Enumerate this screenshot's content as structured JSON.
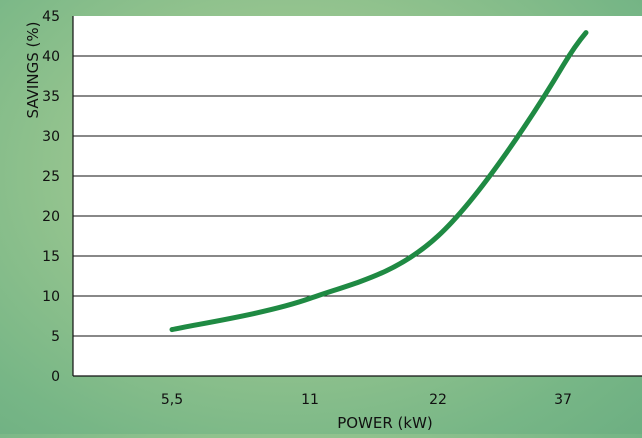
{
  "chart_data": {
    "type": "line",
    "title": "",
    "xlabel": "POWER (kW)",
    "ylabel": "SAVINGS (%)",
    "x_tick_labels": [
      "5,5",
      "11",
      "22",
      "37"
    ],
    "ylim": [
      0,
      45
    ],
    "y_ticks": [
      0,
      5,
      10,
      15,
      20,
      25,
      30,
      35,
      40,
      45
    ],
    "grid": true,
    "series": [
      {
        "color": "#1f8a43",
        "points": [
          {
            "x": "5,5",
            "y": 5.8
          },
          {
            "x": "11",
            "y": 9.7
          },
          {
            "x": "22",
            "y": 17.5
          },
          {
            "x": "37",
            "y": 38.8
          }
        ]
      }
    ]
  }
}
